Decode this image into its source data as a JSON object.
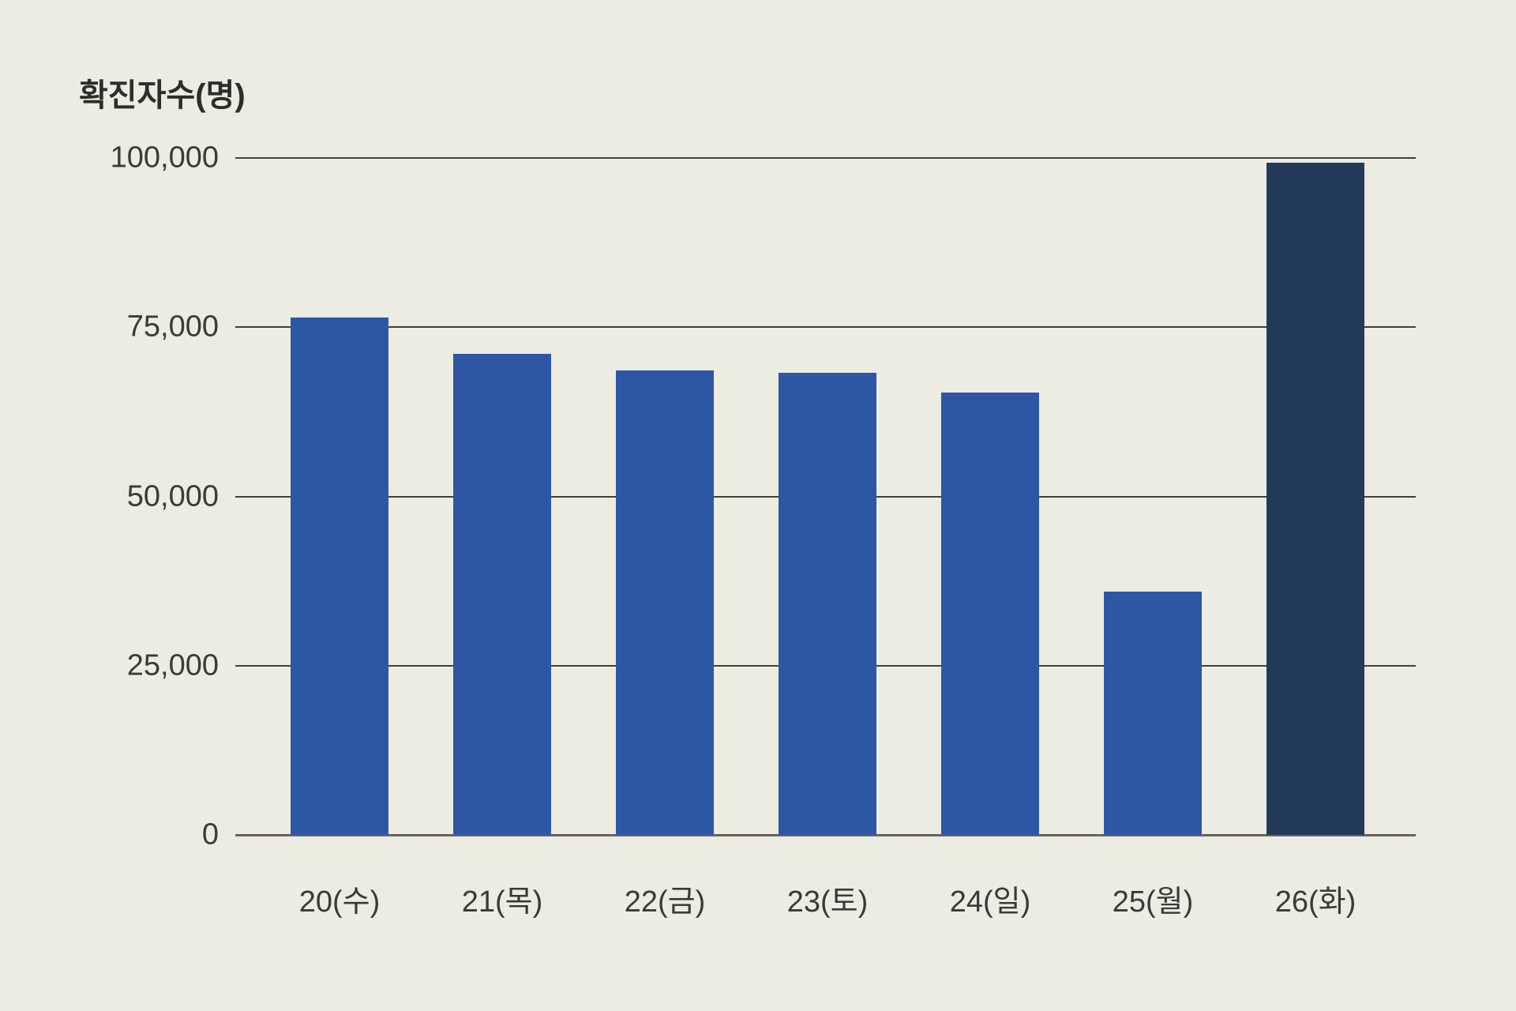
{
  "title": "확진자수(명)",
  "colors": {
    "background": "#edece3",
    "bar": "#2d57a5",
    "bar_highlight": "#233a5b",
    "grid": "#403f39",
    "axis": "#67645c",
    "text": "#3a3a36",
    "title_text": "#2d2d2a"
  },
  "chart_data": {
    "type": "bar",
    "title": "확진자수(명)",
    "xlabel": "",
    "ylabel": "확진자수(명)",
    "categories": [
      "20(수)",
      "21(목)",
      "22(금)",
      "23(토)",
      "24(일)",
      "25(월)",
      "26(화)"
    ],
    "values": [
      76400,
      71100,
      68600,
      68300,
      65400,
      35900,
      99300
    ],
    "highlight_index": 6,
    "ylim": [
      0,
      100000
    ],
    "ytick_interval": 25000,
    "yticks": [
      0,
      25000,
      50000,
      75000,
      100000
    ],
    "ytick_labels": [
      "0",
      "25,000",
      "50,000",
      "75,000",
      "100,000"
    ],
    "grid": true,
    "legend_position": "none"
  }
}
